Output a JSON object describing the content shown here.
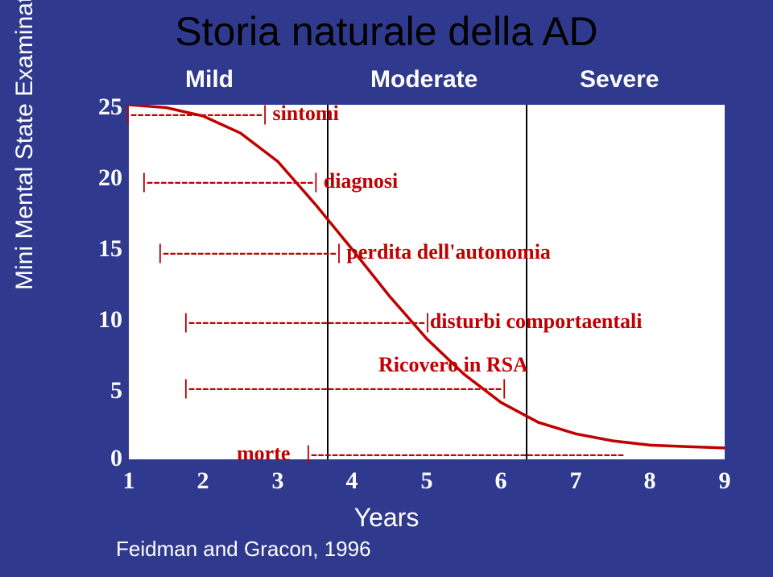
{
  "title": "Storia naturale della AD",
  "y_axis_label": "Mini Mental State Examination score",
  "x_axis_label": "Years",
  "citation": "Feidman and Gracon, 1996",
  "stages": {
    "mild": "Mild",
    "moderate": "Moderate",
    "severe": "Severe"
  },
  "y_ticks": [
    "25",
    "20",
    "15",
    "10",
    "5",
    "0"
  ],
  "x_ticks": [
    "1",
    "2",
    "3",
    "4",
    "5",
    "6",
    "7",
    "8",
    "9"
  ],
  "chart": {
    "type": "line",
    "background_color": "#ffffff",
    "slide_background_color": "#2f3a8f",
    "curve_color": "#c00000",
    "curve_width": 3.5,
    "divider_color": "#000000",
    "title_color": "#000000",
    "axis_text_color": "#ffffff",
    "annotation_color": "#c00000",
    "x_range_years": [
      1,
      9
    ],
    "y_range_mmse": [
      0,
      25
    ],
    "vertical_dividers_years": [
      3,
      6
    ],
    "curve_points": [
      {
        "x": 1.0,
        "y": 25.0
      },
      {
        "x": 1.5,
        "y": 24.8
      },
      {
        "x": 2.0,
        "y": 24.2
      },
      {
        "x": 2.5,
        "y": 23.0
      },
      {
        "x": 3.0,
        "y": 21.0
      },
      {
        "x": 3.5,
        "y": 18.0
      },
      {
        "x": 4.0,
        "y": 14.8
      },
      {
        "x": 4.5,
        "y": 11.5
      },
      {
        "x": 5.0,
        "y": 8.5
      },
      {
        "x": 5.5,
        "y": 6.0
      },
      {
        "x": 6.0,
        "y": 4.0
      },
      {
        "x": 6.5,
        "y": 2.6
      },
      {
        "x": 7.0,
        "y": 1.8
      },
      {
        "x": 7.5,
        "y": 1.3
      },
      {
        "x": 8.0,
        "y": 1.0
      },
      {
        "x": 8.5,
        "y": 0.9
      },
      {
        "x": 9.0,
        "y": 0.8
      }
    ],
    "title_fontsize": 50,
    "label_fontsize": 30,
    "tick_fontsize": 30,
    "annotation_fontsize": 26
  },
  "annotations": {
    "sintomi": "|-------------------| sintomi",
    "diagnosi": "|------------------------| diagnosi",
    "perdita": "|-------------------------| perdita dell'autonomia",
    "disturbi": "|----------------------------------|disturbi comportaentali",
    "ricovero_label": "Ricovero in RSA",
    "ricovero_bar": "|---------------------------------------------|",
    "morte_label": "morte",
    "morte_bar": "|---------------------------------------------"
  }
}
